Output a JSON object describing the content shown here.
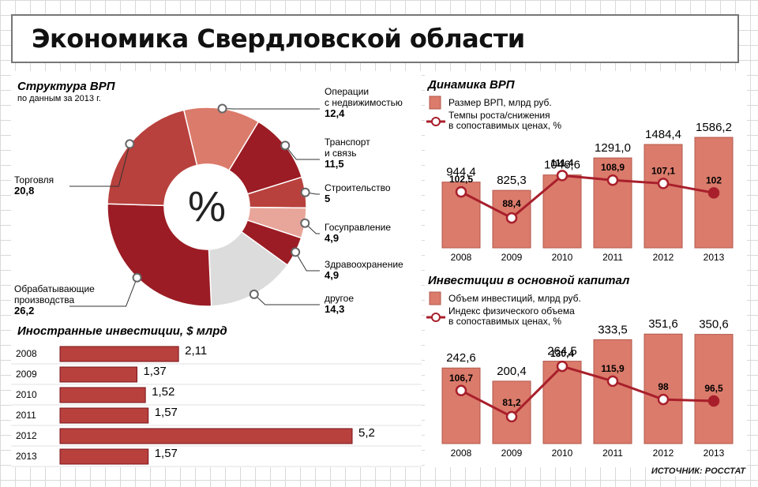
{
  "page": {
    "title": "Экономика Свердловской области",
    "source": "ИСТОЧНИК: РОССТАТ"
  },
  "colors": {
    "dark_red": "#9b1c24",
    "mid_red": "#b8413d",
    "salmon": "#db7b6b",
    "light_salmon": "#e8a59a",
    "grey": "#dcdcdc",
    "line": "#a81f2b"
  },
  "chart_data": [
    {
      "type": "pie",
      "title": "Структура ВРП",
      "subtitle": "по данным за 2013 г.",
      "center_label": "%",
      "slices": [
        {
          "label": "Операции с недвижимостью",
          "line1": "Операции",
          "line2": "с недвижимостью",
          "value": 12.4,
          "value_text": "12,4",
          "color": "#db7b6b"
        },
        {
          "label": "Транспорт и связь",
          "line1": "Транспорт",
          "line2": "и связь",
          "value": 11.5,
          "value_text": "11,5",
          "color": "#9b1c24"
        },
        {
          "label": "Строительство",
          "line1": "Строительство",
          "line2": "",
          "value": 5,
          "value_text": "5",
          "color": "#b8413d"
        },
        {
          "label": "Госуправление",
          "line1": "Госуправление",
          "line2": "",
          "value": 4.9,
          "value_text": "4,9",
          "color": "#e8a59a"
        },
        {
          "label": "Здравоохранение",
          "line1": "Здравоохранение",
          "line2": "",
          "value": 4.9,
          "value_text": "4,9",
          "color": "#9b1c24"
        },
        {
          "label": "другое",
          "line1": "другое",
          "line2": "",
          "value": 14.3,
          "value_text": "14,3",
          "color": "#dcdcdc"
        },
        {
          "label": "Обрабатывающие производства",
          "line1": "Обрабатывающие",
          "line2": "производства",
          "value": 26.2,
          "value_text": "26,2",
          "color": "#9b1c24"
        },
        {
          "label": "Торговля",
          "line1": "Торговля",
          "line2": "",
          "value": 20.8,
          "value_text": "20,8",
          "color": "#b8413d"
        }
      ]
    },
    {
      "type": "bar",
      "title": "Иностранные инвестиции, $ млрд",
      "categories": [
        "2008",
        "2009",
        "2010",
        "2011",
        "2012",
        "2013"
      ],
      "values": [
        2.11,
        1.37,
        1.52,
        1.57,
        5.2,
        1.57
      ],
      "value_labels": [
        "2,11",
        "1,37",
        "1,52",
        "1,57",
        "5,2",
        "1,57"
      ],
      "orientation": "horizontal"
    },
    {
      "type": "bar",
      "title": "Динамика ВРП",
      "legend": [
        "Размер ВРП, млрд руб.",
        "Темпы роста/снижения в сопоставимых ценах, %"
      ],
      "legend_line2": "в сопоставимых ценах, %",
      "legend_line1": "Темпы роста/снижения",
      "categories": [
        "2008",
        "2009",
        "2010",
        "2011",
        "2012",
        "2013"
      ],
      "series": [
        {
          "name": "Размер ВРП, млрд руб.",
          "type": "bar",
          "values": [
            944.4,
            825.3,
            1046.6,
            1291.0,
            1484.4,
            1586.2
          ],
          "labels": [
            "944,4",
            "825,3",
            "1046,6",
            "1291,0",
            "1484,4",
            "1586,2"
          ]
        },
        {
          "name": "Темпы роста/снижения в сопоставимых ценах, %",
          "type": "line",
          "values": [
            102.5,
            88.4,
            111.4,
            108.9,
            107.1,
            102
          ],
          "labels": [
            "102,5",
            "88,4",
            "111,4",
            "108,9",
            "107,1",
            "102"
          ]
        }
      ]
    },
    {
      "type": "bar",
      "title": "Инвестиции в основной капитал",
      "legend": [
        "Объем инвестиций, млрд руб.",
        "Индекс физического объема в сопоставимых ценах, %"
      ],
      "legend_line1": "Индекс физического объема",
      "legend_line2": "в сопоставимых ценах, %",
      "categories": [
        "2008",
        "2009",
        "2010",
        "2011",
        "2012",
        "2013"
      ],
      "series": [
        {
          "name": "Объем инвестиций, млрд руб.",
          "type": "bar",
          "values": [
            242.6,
            200.4,
            264.5,
            333.5,
            351.6,
            350.6
          ],
          "labels": [
            "242,6",
            "200,4",
            "264,5",
            "333,5",
            "351,6",
            "350,6"
          ]
        },
        {
          "name": "Индекс физического объема в сопоставимых ценах, %",
          "type": "line",
          "values": [
            106.7,
            81.2,
            130.4,
            115.9,
            98,
            96.5
          ],
          "labels": [
            "106,7",
            "81,2",
            "130,4",
            "115,9",
            "98",
            "96,5"
          ]
        }
      ]
    }
  ]
}
